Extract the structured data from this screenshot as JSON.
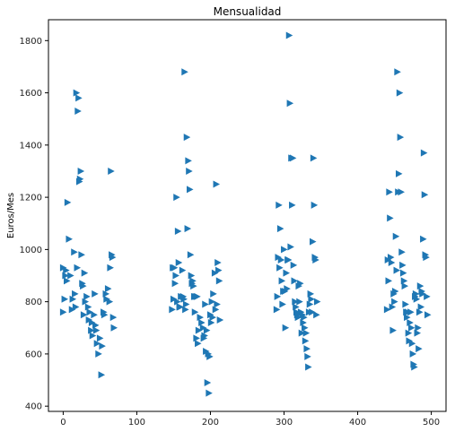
{
  "chart_data": {
    "type": "scatter",
    "title": "Mensualidad",
    "xlabel": "",
    "ylabel": "Euros/Mes",
    "xlim": [
      -20,
      520
    ],
    "ylim": [
      380,
      1880
    ],
    "xticks": [
      0,
      100,
      200,
      300,
      400,
      500
    ],
    "yticks": [
      400,
      600,
      800,
      1000,
      1200,
      1400,
      1600,
      1800
    ],
    "grid": false,
    "marker": "triangle-right",
    "color": "#1f77b4",
    "series": [
      {
        "points": [
          [
            0,
            760
          ],
          [
            0,
            930
          ],
          [
            2,
            810
          ],
          [
            3,
            900
          ],
          [
            4,
            920
          ],
          [
            5,
            880
          ],
          [
            6,
            1180
          ],
          [
            8,
            1040
          ],
          [
            10,
            900
          ],
          [
            12,
            770
          ],
          [
            13,
            810
          ],
          [
            15,
            990
          ],
          [
            16,
            830
          ],
          [
            17,
            780
          ],
          [
            18,
            1600
          ],
          [
            19,
            930
          ],
          [
            20,
            1530
          ],
          [
            21,
            1580
          ],
          [
            22,
            1260
          ],
          [
            23,
            1270
          ],
          [
            24,
            1300
          ],
          [
            25,
            980
          ],
          [
            26,
            870
          ],
          [
            27,
            860
          ],
          [
            28,
            750
          ],
          [
            29,
            910
          ],
          [
            30,
            800
          ],
          [
            32,
            820
          ],
          [
            34,
            780
          ],
          [
            35,
            730
          ],
          [
            36,
            760
          ],
          [
            38,
            690
          ],
          [
            39,
            720
          ],
          [
            40,
            670
          ],
          [
            42,
            750
          ],
          [
            43,
            830
          ],
          [
            44,
            710
          ],
          [
            45,
            690
          ],
          [
            46,
            640
          ],
          [
            48,
            600
          ],
          [
            50,
            660
          ],
          [
            52,
            520
          ],
          [
            53,
            630
          ],
          [
            55,
            760
          ],
          [
            56,
            750
          ],
          [
            58,
            830
          ],
          [
            59,
            810
          ],
          [
            61,
            850
          ],
          [
            63,
            800
          ],
          [
            64,
            930
          ],
          [
            65,
            1300
          ],
          [
            66,
            980
          ],
          [
            67,
            970
          ],
          [
            68,
            740
          ],
          [
            69,
            700
          ],
          [
            148,
            770
          ],
          [
            149,
            930
          ],
          [
            150,
            810
          ],
          [
            151,
            930
          ],
          [
            152,
            870
          ],
          [
            153,
            900
          ],
          [
            154,
            1200
          ],
          [
            155,
            800
          ],
          [
            156,
            1070
          ],
          [
            157,
            950
          ],
          [
            158,
            780
          ],
          [
            159,
            780
          ],
          [
            160,
            820
          ],
          [
            162,
            920
          ],
          [
            163,
            820
          ],
          [
            164,
            810
          ],
          [
            165,
            1680
          ],
          [
            166,
            770
          ],
          [
            167,
            790
          ],
          [
            168,
            1430
          ],
          [
            169,
            1080
          ],
          [
            170,
            1340
          ],
          [
            171,
            1300
          ],
          [
            172,
            1230
          ],
          [
            173,
            980
          ],
          [
            174,
            900
          ],
          [
            175,
            870
          ],
          [
            176,
            880
          ],
          [
            177,
            860
          ],
          [
            178,
            820
          ],
          [
            179,
            760
          ],
          [
            180,
            820
          ],
          [
            181,
            660
          ],
          [
            182,
            820
          ],
          [
            183,
            640
          ],
          [
            184,
            690
          ],
          [
            186,
            740
          ],
          [
            188,
            720
          ],
          [
            190,
            700
          ],
          [
            191,
            660
          ],
          [
            192,
            670
          ],
          [
            193,
            790
          ],
          [
            194,
            610
          ],
          [
            195,
            690
          ],
          [
            196,
            490
          ],
          [
            197,
            600
          ],
          [
            198,
            450
          ],
          [
            199,
            590
          ],
          [
            200,
            750
          ],
          [
            201,
            720
          ],
          [
            202,
            800
          ],
          [
            203,
            740
          ],
          [
            204,
            830
          ],
          [
            206,
            910
          ],
          [
            207,
            770
          ],
          [
            208,
            1250
          ],
          [
            209,
            790
          ],
          [
            210,
            950
          ],
          [
            211,
            920
          ],
          [
            212,
            880
          ],
          [
            213,
            730
          ],
          [
            290,
            770
          ],
          [
            291,
            820
          ],
          [
            292,
            970
          ],
          [
            293,
            1170
          ],
          [
            294,
            930
          ],
          [
            295,
            1080
          ],
          [
            296,
            960
          ],
          [
            297,
            880
          ],
          [
            298,
            790
          ],
          [
            299,
            840
          ],
          [
            300,
            1000
          ],
          [
            301,
            840
          ],
          [
            302,
            700
          ],
          [
            303,
            910
          ],
          [
            304,
            850
          ],
          [
            305,
            960
          ],
          [
            306,
            960
          ],
          [
            307,
            1820
          ],
          [
            308,
            1560
          ],
          [
            309,
            1010
          ],
          [
            310,
            1350
          ],
          [
            311,
            1170
          ],
          [
            312,
            1350
          ],
          [
            313,
            940
          ],
          [
            314,
            880
          ],
          [
            315,
            800
          ],
          [
            316,
            780
          ],
          [
            317,
            760
          ],
          [
            318,
            750
          ],
          [
            319,
            740
          ],
          [
            320,
            860
          ],
          [
            321,
            800
          ],
          [
            322,
            870
          ],
          [
            323,
            760
          ],
          [
            324,
            680
          ],
          [
            325,
            750
          ],
          [
            326,
            720
          ],
          [
            327,
            740
          ],
          [
            328,
            700
          ],
          [
            329,
            650
          ],
          [
            330,
            680
          ],
          [
            331,
            620
          ],
          [
            332,
            590
          ],
          [
            333,
            550
          ],
          [
            334,
            760
          ],
          [
            335,
            790
          ],
          [
            336,
            830
          ],
          [
            337,
            810
          ],
          [
            338,
            760
          ],
          [
            339,
            1030
          ],
          [
            340,
            1350
          ],
          [
            341,
            1170
          ],
          [
            342,
            970
          ],
          [
            343,
            960
          ],
          [
            344,
            750
          ],
          [
            345,
            800
          ],
          [
            440,
            770
          ],
          [
            441,
            960
          ],
          [
            442,
            880
          ],
          [
            443,
            1220
          ],
          [
            444,
            1120
          ],
          [
            445,
            970
          ],
          [
            446,
            950
          ],
          [
            447,
            780
          ],
          [
            448,
            690
          ],
          [
            449,
            830
          ],
          [
            450,
            800
          ],
          [
            451,
            840
          ],
          [
            452,
            1050
          ],
          [
            453,
            920
          ],
          [
            454,
            1680
          ],
          [
            455,
            1220
          ],
          [
            456,
            1290
          ],
          [
            457,
            1600
          ],
          [
            458,
            1430
          ],
          [
            459,
            1220
          ],
          [
            460,
            990
          ],
          [
            461,
            940
          ],
          [
            462,
            910
          ],
          [
            463,
            880
          ],
          [
            464,
            860
          ],
          [
            465,
            790
          ],
          [
            466,
            760
          ],
          [
            467,
            740
          ],
          [
            468,
            760
          ],
          [
            469,
            680
          ],
          [
            470,
            650
          ],
          [
            471,
            720
          ],
          [
            472,
            760
          ],
          [
            473,
            700
          ],
          [
            474,
            640
          ],
          [
            475,
            600
          ],
          [
            476,
            560
          ],
          [
            477,
            550
          ],
          [
            478,
            820
          ],
          [
            479,
            830
          ],
          [
            480,
            810
          ],
          [
            481,
            680
          ],
          [
            482,
            700
          ],
          [
            483,
            620
          ],
          [
            484,
            760
          ],
          [
            485,
            860
          ],
          [
            486,
            780
          ],
          [
            487,
            840
          ],
          [
            488,
            830
          ],
          [
            489,
            1040
          ],
          [
            490,
            1370
          ],
          [
            491,
            1210
          ],
          [
            492,
            980
          ],
          [
            493,
            970
          ],
          [
            494,
            820
          ],
          [
            495,
            750
          ]
        ]
      }
    ]
  }
}
